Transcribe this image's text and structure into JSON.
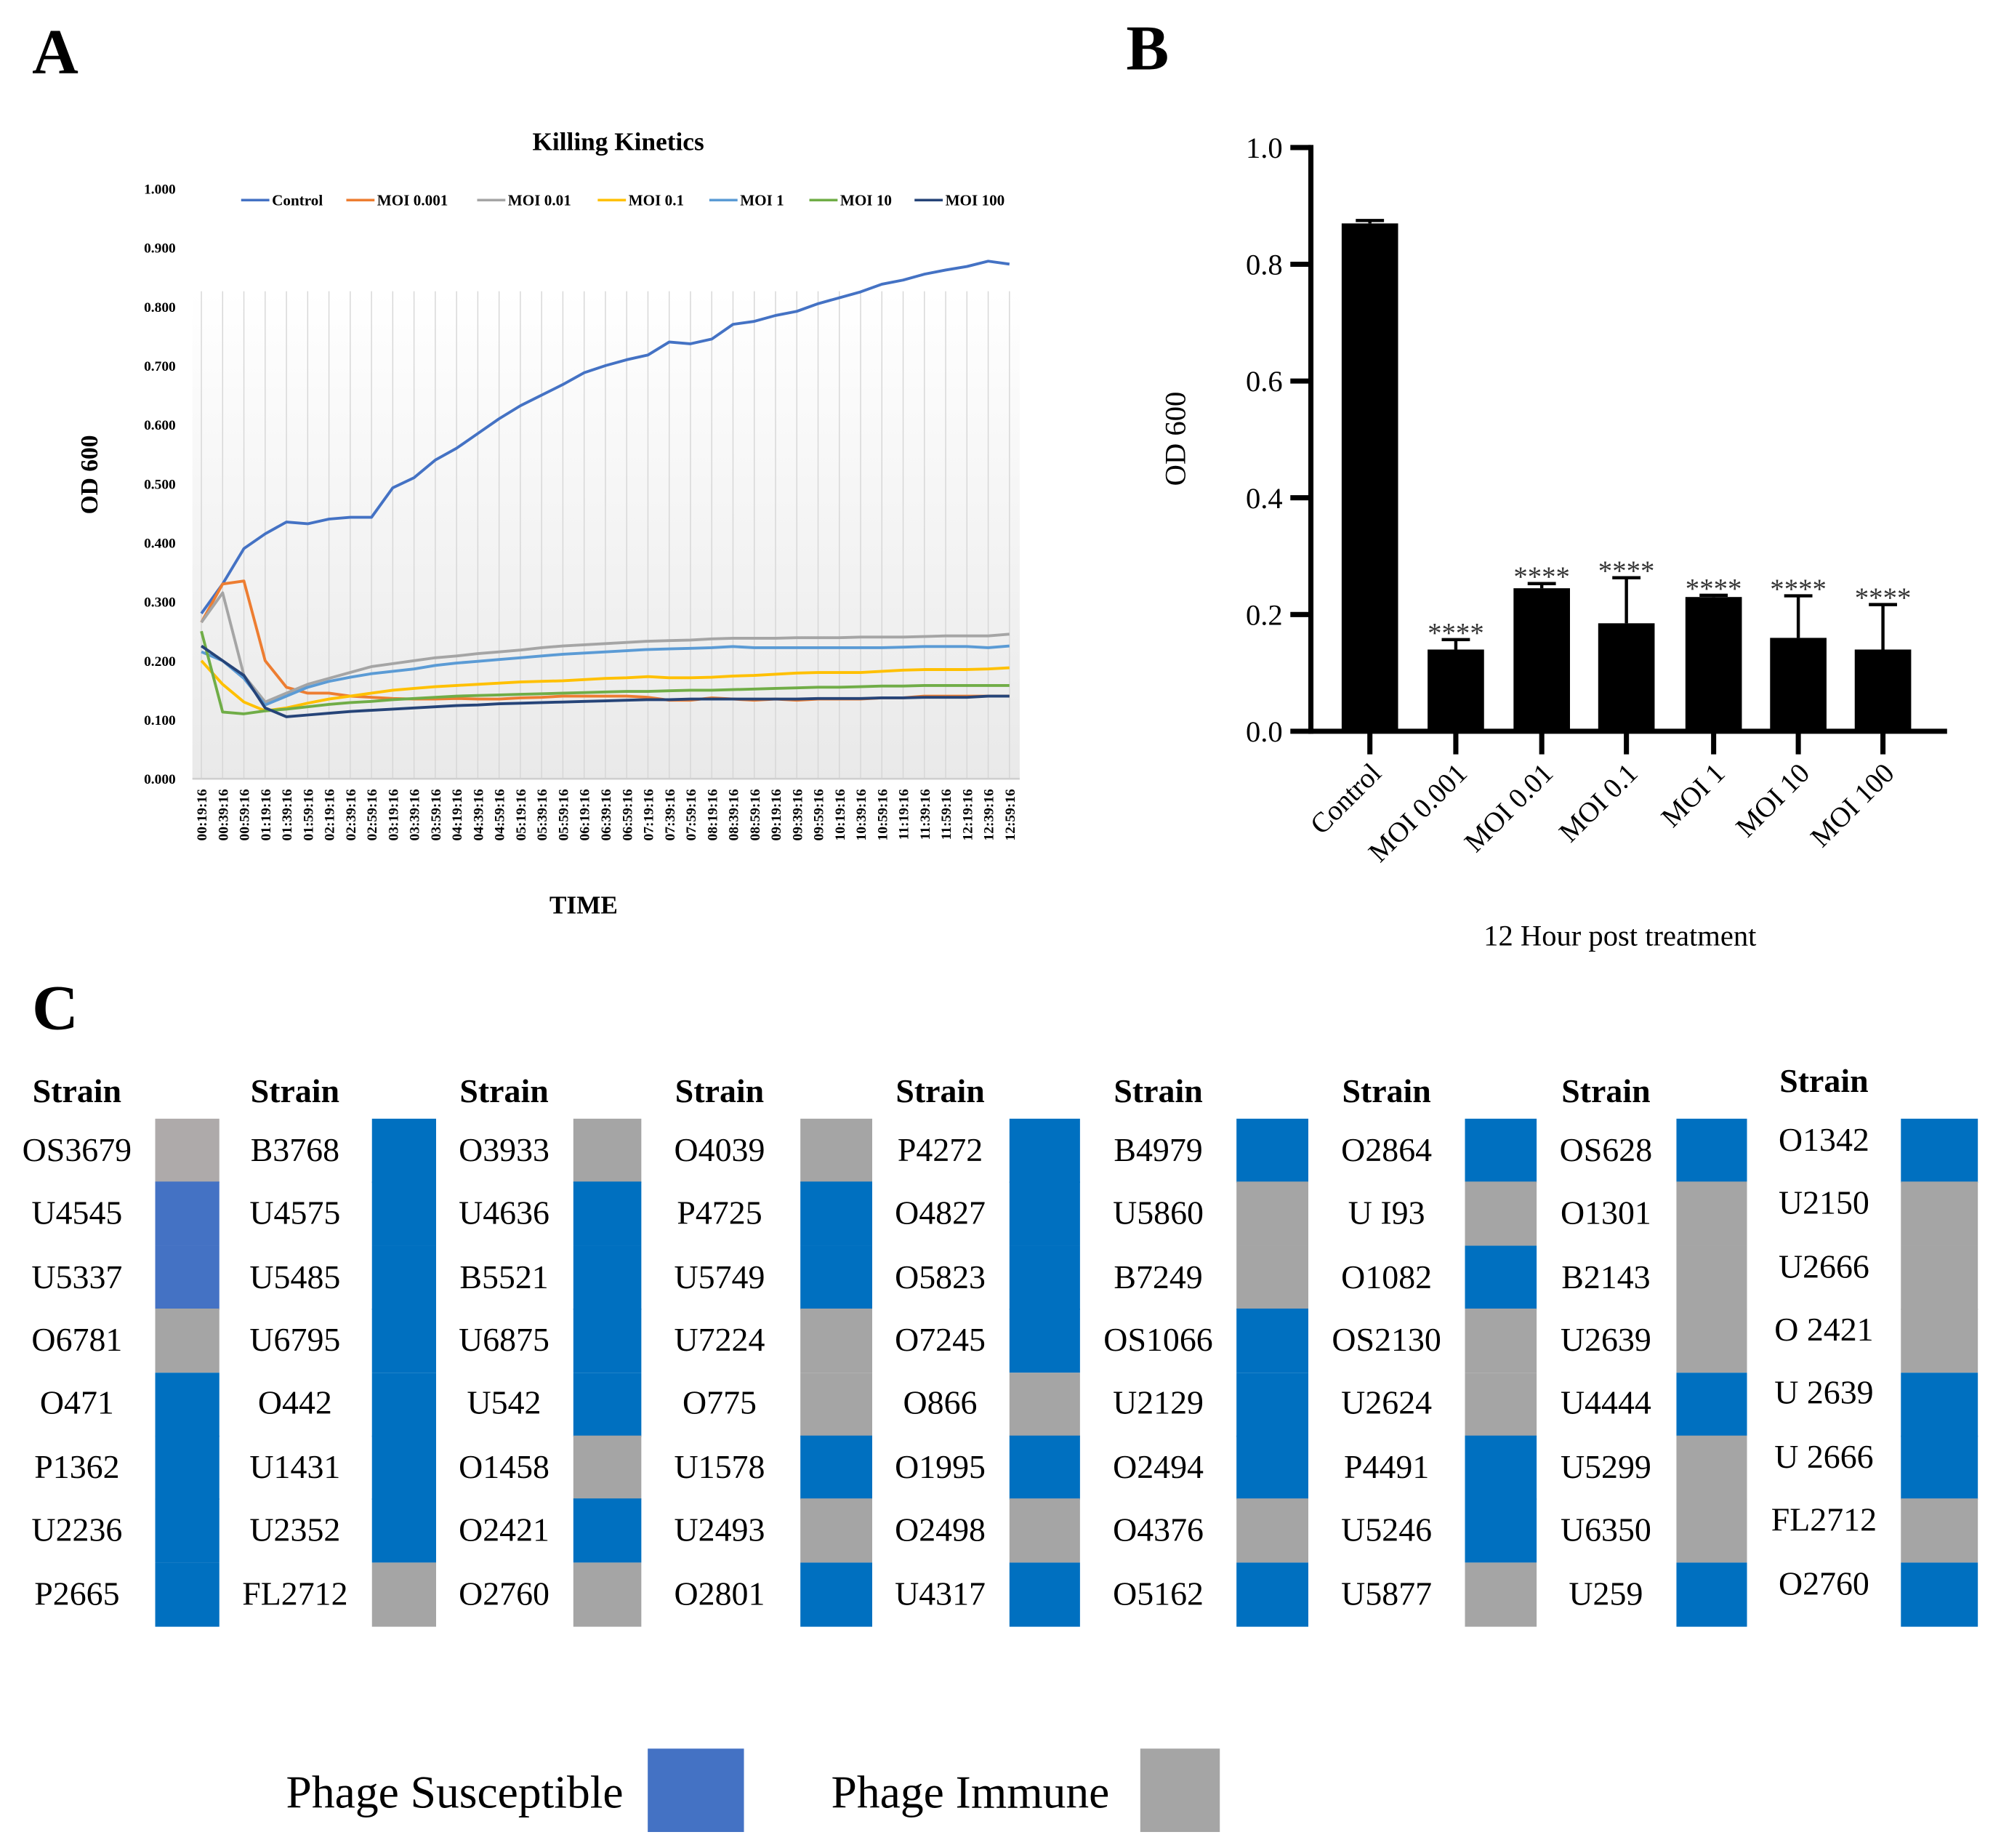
{
  "panels": {
    "a": "A",
    "b": "B",
    "c": "C"
  },
  "chart_data": [
    {
      "type": "line",
      "title": "Killing Kinetics",
      "xlabel": "TIME",
      "ylabel": "OD 600",
      "ylim": [
        0,
        1
      ],
      "yticks": [
        "0.000",
        "0.100",
        "0.200",
        "0.300",
        "0.400",
        "0.500",
        "0.600",
        "0.700",
        "0.800",
        "0.900",
        "1.000"
      ],
      "grid": "vertical",
      "legend": "top",
      "x": [
        "00:19:16",
        "00:39:16",
        "00:59:16",
        "01:19:16",
        "01:39:16",
        "01:59:16",
        "02:19:16",
        "02:39:16",
        "02:59:16",
        "03:19:16",
        "03:39:16",
        "03:59:16",
        "04:19:16",
        "04:39:16",
        "04:59:16",
        "05:19:16",
        "05:39:16",
        "05:59:16",
        "06:19:16",
        "06:39:16",
        "06:59:16",
        "07:19:16",
        "07:39:16",
        "07:59:16",
        "08:19:16",
        "08:39:16",
        "08:59:16",
        "09:19:16",
        "09:39:16",
        "09:59:16",
        "10:19:16",
        "10:39:16",
        "10:59:16",
        "11:19:16",
        "11:39:16",
        "11:59:16",
        "12:19:16",
        "12:39:16",
        "12:59:16"
      ],
      "series": [
        {
          "name": "Control",
          "color": "#4472C4",
          "values": [
            0.28,
            0.33,
            0.39,
            0.415,
            0.435,
            0.432,
            0.44,
            0.443,
            0.443,
            0.493,
            0.51,
            0.54,
            0.56,
            0.585,
            0.61,
            0.632,
            0.65,
            0.668,
            0.688,
            0.7,
            0.71,
            0.718,
            0.74,
            0.737,
            0.745,
            0.77,
            0.775,
            0.785,
            0.792,
            0.805,
            0.815,
            0.825,
            0.838,
            0.845,
            0.855,
            0.862,
            0.868,
            0.877,
            0.872
          ]
        },
        {
          "name": "MOI 0.001",
          "color": "#ED7D31",
          "values": [
            0.265,
            0.33,
            0.335,
            0.2,
            0.155,
            0.145,
            0.145,
            0.14,
            0.138,
            0.136,
            0.135,
            0.135,
            0.136,
            0.135,
            0.135,
            0.137,
            0.138,
            0.14,
            0.14,
            0.14,
            0.14,
            0.138,
            0.133,
            0.133,
            0.137,
            0.135,
            0.133,
            0.135,
            0.133,
            0.135,
            0.135,
            0.135,
            0.137,
            0.137,
            0.14,
            0.14,
            0.14,
            0.14,
            0.14
          ]
        },
        {
          "name": "MOI 0.01",
          "color": "#A5A5A5",
          "values": [
            0.265,
            0.315,
            0.175,
            0.13,
            0.145,
            0.16,
            0.17,
            0.18,
            0.19,
            0.195,
            0.2,
            0.205,
            0.208,
            0.212,
            0.215,
            0.218,
            0.222,
            0.225,
            0.227,
            0.229,
            0.231,
            0.233,
            0.234,
            0.235,
            0.237,
            0.238,
            0.238,
            0.238,
            0.239,
            0.239,
            0.239,
            0.24,
            0.24,
            0.24,
            0.241,
            0.242,
            0.242,
            0.242,
            0.245
          ]
        },
        {
          "name": "MOI 0.1",
          "color": "#FFC000",
          "values": [
            0.2,
            0.16,
            0.13,
            0.115,
            0.12,
            0.128,
            0.135,
            0.14,
            0.145,
            0.15,
            0.153,
            0.156,
            0.158,
            0.16,
            0.162,
            0.164,
            0.165,
            0.166,
            0.168,
            0.17,
            0.171,
            0.173,
            0.171,
            0.171,
            0.172,
            0.174,
            0.175,
            0.177,
            0.179,
            0.18,
            0.18,
            0.18,
            0.182,
            0.184,
            0.185,
            0.185,
            0.185,
            0.186,
            0.188
          ]
        },
        {
          "name": "MOI 1",
          "color": "#5B9BD5",
          "values": [
            0.215,
            0.2,
            0.17,
            0.125,
            0.14,
            0.155,
            0.165,
            0.172,
            0.178,
            0.182,
            0.186,
            0.192,
            0.196,
            0.199,
            0.202,
            0.205,
            0.208,
            0.211,
            0.213,
            0.215,
            0.217,
            0.219,
            0.22,
            0.221,
            0.222,
            0.224,
            0.222,
            0.222,
            0.222,
            0.222,
            0.222,
            0.222,
            0.222,
            0.223,
            0.224,
            0.224,
            0.224,
            0.222,
            0.225
          ]
        },
        {
          "name": "MOI 10",
          "color": "#70AD47",
          "values": [
            0.25,
            0.113,
            0.11,
            0.115,
            0.118,
            0.122,
            0.126,
            0.129,
            0.131,
            0.134,
            0.136,
            0.138,
            0.14,
            0.141,
            0.142,
            0.143,
            0.144,
            0.145,
            0.146,
            0.147,
            0.148,
            0.148,
            0.149,
            0.15,
            0.15,
            0.151,
            0.152,
            0.153,
            0.154,
            0.155,
            0.155,
            0.156,
            0.157,
            0.157,
            0.158,
            0.158,
            0.158,
            0.158,
            0.158
          ]
        },
        {
          "name": "MOI 100",
          "color": "#264478",
          "values": [
            0.225,
            0.2,
            0.175,
            0.12,
            0.105,
            0.108,
            0.111,
            0.114,
            0.116,
            0.118,
            0.12,
            0.122,
            0.124,
            0.125,
            0.127,
            0.128,
            0.129,
            0.13,
            0.131,
            0.132,
            0.133,
            0.134,
            0.134,
            0.135,
            0.135,
            0.135,
            0.135,
            0.135,
            0.135,
            0.136,
            0.136,
            0.136,
            0.137,
            0.137,
            0.138,
            0.138,
            0.138,
            0.14,
            0.14
          ]
        }
      ]
    },
    {
      "type": "bar",
      "xlabel": "12 Hour post treatment",
      "ylabel": "OD 600",
      "ylim": [
        0,
        1
      ],
      "yticks": [
        "0.0",
        "0.2",
        "0.4",
        "0.6",
        "0.8",
        "1.0"
      ],
      "color": "#000000",
      "categories": [
        "Control",
        "MOI 0.001",
        "MOI 0.01",
        "MOI 0.1",
        "MOI 1",
        "MOI 10",
        "MOI 100"
      ],
      "values": [
        0.87,
        0.14,
        0.245,
        0.185,
        0.23,
        0.16,
        0.14
      ],
      "errors": [
        0.005,
        0.017,
        0.008,
        0.078,
        0.003,
        0.072,
        0.077
      ],
      "annotations": [
        "",
        "****",
        "****",
        "****",
        "****",
        "****",
        "****"
      ]
    }
  ],
  "strain_table": {
    "header": "Strain",
    "colors": {
      "S": "#0070C0",
      "S2": "#4472C4",
      "I": "#A5A5A5",
      "I2": "#AEAAAA"
    },
    "columns": [
      [
        [
          "OS3679",
          "I2"
        ],
        [
          "U4545",
          "S2"
        ],
        [
          "U5337",
          "S2"
        ],
        [
          "O6781",
          "I"
        ],
        [
          "O471",
          "S"
        ],
        [
          "P1362",
          "S"
        ],
        [
          "U2236",
          "S"
        ],
        [
          "P2665",
          "S"
        ]
      ],
      [
        [
          "B3768",
          "S"
        ],
        [
          "U4575",
          "S"
        ],
        [
          "U5485",
          "S"
        ],
        [
          "U6795",
          "S"
        ],
        [
          "O442",
          "S"
        ],
        [
          "U1431",
          "S"
        ],
        [
          "U2352",
          "S"
        ],
        [
          "FL2712",
          "I"
        ]
      ],
      [
        [
          "O3933",
          "I"
        ],
        [
          "U4636",
          "S"
        ],
        [
          "B5521",
          "S"
        ],
        [
          "U6875",
          "S"
        ],
        [
          "U542",
          "S"
        ],
        [
          "O1458",
          "I"
        ],
        [
          "O2421",
          "S"
        ],
        [
          "O2760",
          "I"
        ]
      ],
      [
        [
          "O4039",
          "I"
        ],
        [
          "P4725",
          "S"
        ],
        [
          "U5749",
          "S"
        ],
        [
          "U7224",
          "I"
        ],
        [
          "O775",
          "I"
        ],
        [
          "U1578",
          "S"
        ],
        [
          "U2493",
          "I"
        ],
        [
          "O2801",
          "S"
        ]
      ],
      [
        [
          "P4272",
          "S"
        ],
        [
          "O4827",
          "S"
        ],
        [
          "O5823",
          "S"
        ],
        [
          "O7245",
          "S"
        ],
        [
          "O866",
          "I"
        ],
        [
          "O1995",
          "S"
        ],
        [
          "O2498",
          "I"
        ],
        [
          "U4317",
          "S"
        ]
      ],
      [
        [
          "B4979",
          "S"
        ],
        [
          "U5860",
          "I"
        ],
        [
          "B7249",
          "I"
        ],
        [
          "OS1066",
          "S"
        ],
        [
          "U2129",
          "S"
        ],
        [
          "O2494",
          "S"
        ],
        [
          "O4376",
          "I"
        ],
        [
          "O5162",
          "S"
        ]
      ],
      [
        [
          "O2864",
          "S"
        ],
        [
          "U I93",
          "I"
        ],
        [
          "O1082",
          "S"
        ],
        [
          "OS2130",
          "I"
        ],
        [
          "U2624",
          "I"
        ],
        [
          "P4491",
          "S"
        ],
        [
          "U5246",
          "S"
        ],
        [
          "U5877",
          "I"
        ]
      ],
      [
        [
          "OS628",
          "S"
        ],
        [
          "O1301",
          "I"
        ],
        [
          "B2143",
          "I"
        ],
        [
          "U2639",
          "I"
        ],
        [
          "U4444",
          "S"
        ],
        [
          "U5299",
          "I"
        ],
        [
          "U6350",
          "I"
        ],
        [
          "U259",
          "S"
        ]
      ],
      [
        [
          "O1342",
          "S"
        ],
        [
          "U2150",
          "I"
        ],
        [
          "U2666",
          "I"
        ],
        [
          "O 2421",
          "I"
        ],
        [
          "U 2639",
          "S"
        ],
        [
          "U 2666",
          "S"
        ],
        [
          "FL2712",
          "I"
        ],
        [
          "O2760",
          "S"
        ]
      ]
    ],
    "legend": [
      {
        "label": "Phage Susceptible",
        "color": "#4472C4"
      },
      {
        "label": "Phage Immune",
        "color": "#A5A5A5"
      }
    ]
  }
}
